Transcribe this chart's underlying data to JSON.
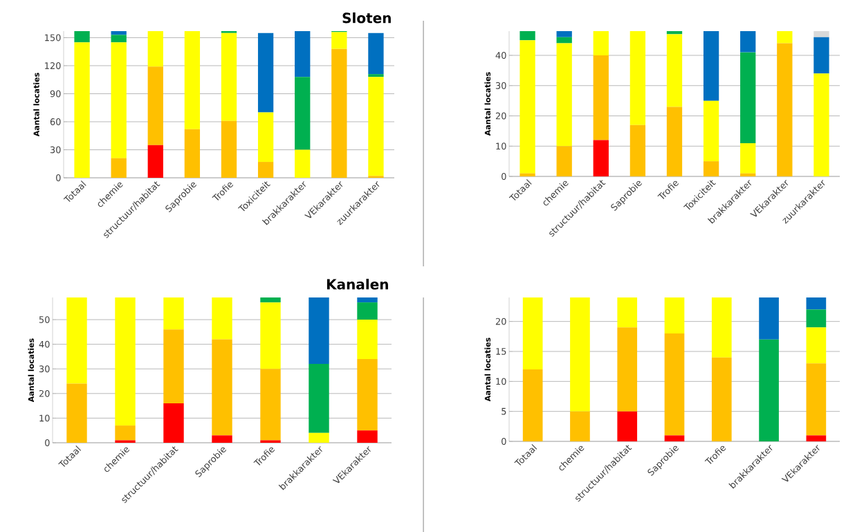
{
  "chart_data": [
    {
      "type": "bar",
      "stacked": true,
      "title": "Sloten",
      "ylabel": "Aantal locaties",
      "grid": "y",
      "categories": [
        "Totaal",
        "chemie",
        "structuur/habitat",
        "Saprobie",
        "Trofie",
        "Toxiciteit",
        "brakkarakter",
        "VEkarakter",
        "zuurkarakter"
      ],
      "ylim": [
        0,
        157
      ],
      "yticks": [
        0,
        30,
        60,
        90,
        120,
        150
      ],
      "series": [
        {
          "color": "#ff0000",
          "values": [
            0,
            0,
            35,
            0,
            0,
            0,
            0,
            0,
            0
          ]
        },
        {
          "color": "#ffc000",
          "values": [
            0,
            21,
            84,
            52,
            61,
            17,
            0,
            138,
            2
          ]
        },
        {
          "color": "#ffff00",
          "values": [
            145,
            124,
            38,
            105,
            94,
            53,
            30,
            18,
            106
          ]
        },
        {
          "color": "#00b050",
          "values": [
            12,
            8,
            0,
            0,
            2,
            0,
            78,
            1,
            3
          ]
        },
        {
          "color": "#0070c0",
          "values": [
            0,
            4,
            0,
            0,
            0,
            85,
            49,
            0,
            44
          ]
        }
      ]
    },
    {
      "type": "bar",
      "stacked": true,
      "ylabel": "Aantal locaties",
      "grid": "y",
      "categories": [
        "Totaal",
        "chemie",
        "structuur/habitat",
        "Saprobie",
        "Trofie",
        "Toxiciteit",
        "brakkarakter",
        "VEkarakter",
        "zuurkarakter"
      ],
      "ylim": [
        0,
        48
      ],
      "yticks": [
        0,
        10,
        20,
        30,
        40
      ],
      "series": [
        {
          "color": "#ff0000",
          "values": [
            0,
            0,
            12,
            0,
            0,
            0,
            0,
            0,
            0
          ]
        },
        {
          "color": "#ffc000",
          "values": [
            1,
            10,
            28,
            17,
            23,
            5,
            1,
            44,
            0
          ]
        },
        {
          "color": "#ffff00",
          "values": [
            44,
            34,
            8,
            31,
            24,
            20,
            10,
            4,
            34
          ]
        },
        {
          "color": "#00b050",
          "values": [
            3,
            2,
            0,
            0,
            1,
            0,
            30,
            0,
            0
          ]
        },
        {
          "color": "#0070c0",
          "values": [
            0,
            2,
            0,
            0,
            0,
            23,
            7,
            0,
            12
          ]
        },
        {
          "color": "#d9d9d9",
          "values": [
            0,
            0,
            0,
            0,
            0,
            0,
            0,
            0,
            2
          ]
        }
      ]
    },
    {
      "type": "bar",
      "stacked": true,
      "title": "Kanalen",
      "ylabel": "Aantal locaties",
      "grid": "y",
      "categories": [
        "Totaal",
        "chemie",
        "structuur/habitat",
        "Saprobie",
        "Trofie",
        "brakkarakter",
        "VEkarakter"
      ],
      "ylim": [
        0,
        59
      ],
      "yticks": [
        0,
        10,
        20,
        30,
        40,
        50
      ],
      "series": [
        {
          "color": "#ff0000",
          "values": [
            0,
            1,
            16,
            3,
            1,
            0,
            5
          ]
        },
        {
          "color": "#ffc000",
          "values": [
            24,
            6,
            30,
            39,
            29,
            0,
            29
          ]
        },
        {
          "color": "#ffff00",
          "values": [
            35,
            52,
            13,
            17,
            27,
            4,
            16
          ]
        },
        {
          "color": "#00b050",
          "values": [
            0,
            0,
            0,
            0,
            2,
            28,
            7
          ]
        },
        {
          "color": "#0070c0",
          "values": [
            0,
            0,
            0,
            0,
            0,
            27,
            2
          ]
        }
      ]
    },
    {
      "type": "bar",
      "stacked": true,
      "ylabel": "Aantal locaties",
      "grid": "y",
      "categories": [
        "Totaal",
        "chemie",
        "structuur/habitat",
        "Saprobie",
        "Trofie",
        "brakkarakter",
        "VEkarakter"
      ],
      "ylim": [
        0,
        24
      ],
      "yticks": [
        0,
        5,
        10,
        15,
        20
      ],
      "series": [
        {
          "color": "#ff0000",
          "values": [
            0,
            0,
            5,
            1,
            0,
            0,
            1
          ]
        },
        {
          "color": "#ffc000",
          "values": [
            12,
            5,
            14,
            17,
            14,
            0,
            12
          ]
        },
        {
          "color": "#ffff00",
          "values": [
            12,
            19,
            5,
            6,
            10,
            0,
            6
          ]
        },
        {
          "color": "#00b050",
          "values": [
            0,
            0,
            0,
            0,
            0,
            17,
            3
          ]
        },
        {
          "color": "#0070c0",
          "values": [
            0,
            0,
            0,
            0,
            0,
            7,
            2
          ]
        }
      ]
    }
  ]
}
